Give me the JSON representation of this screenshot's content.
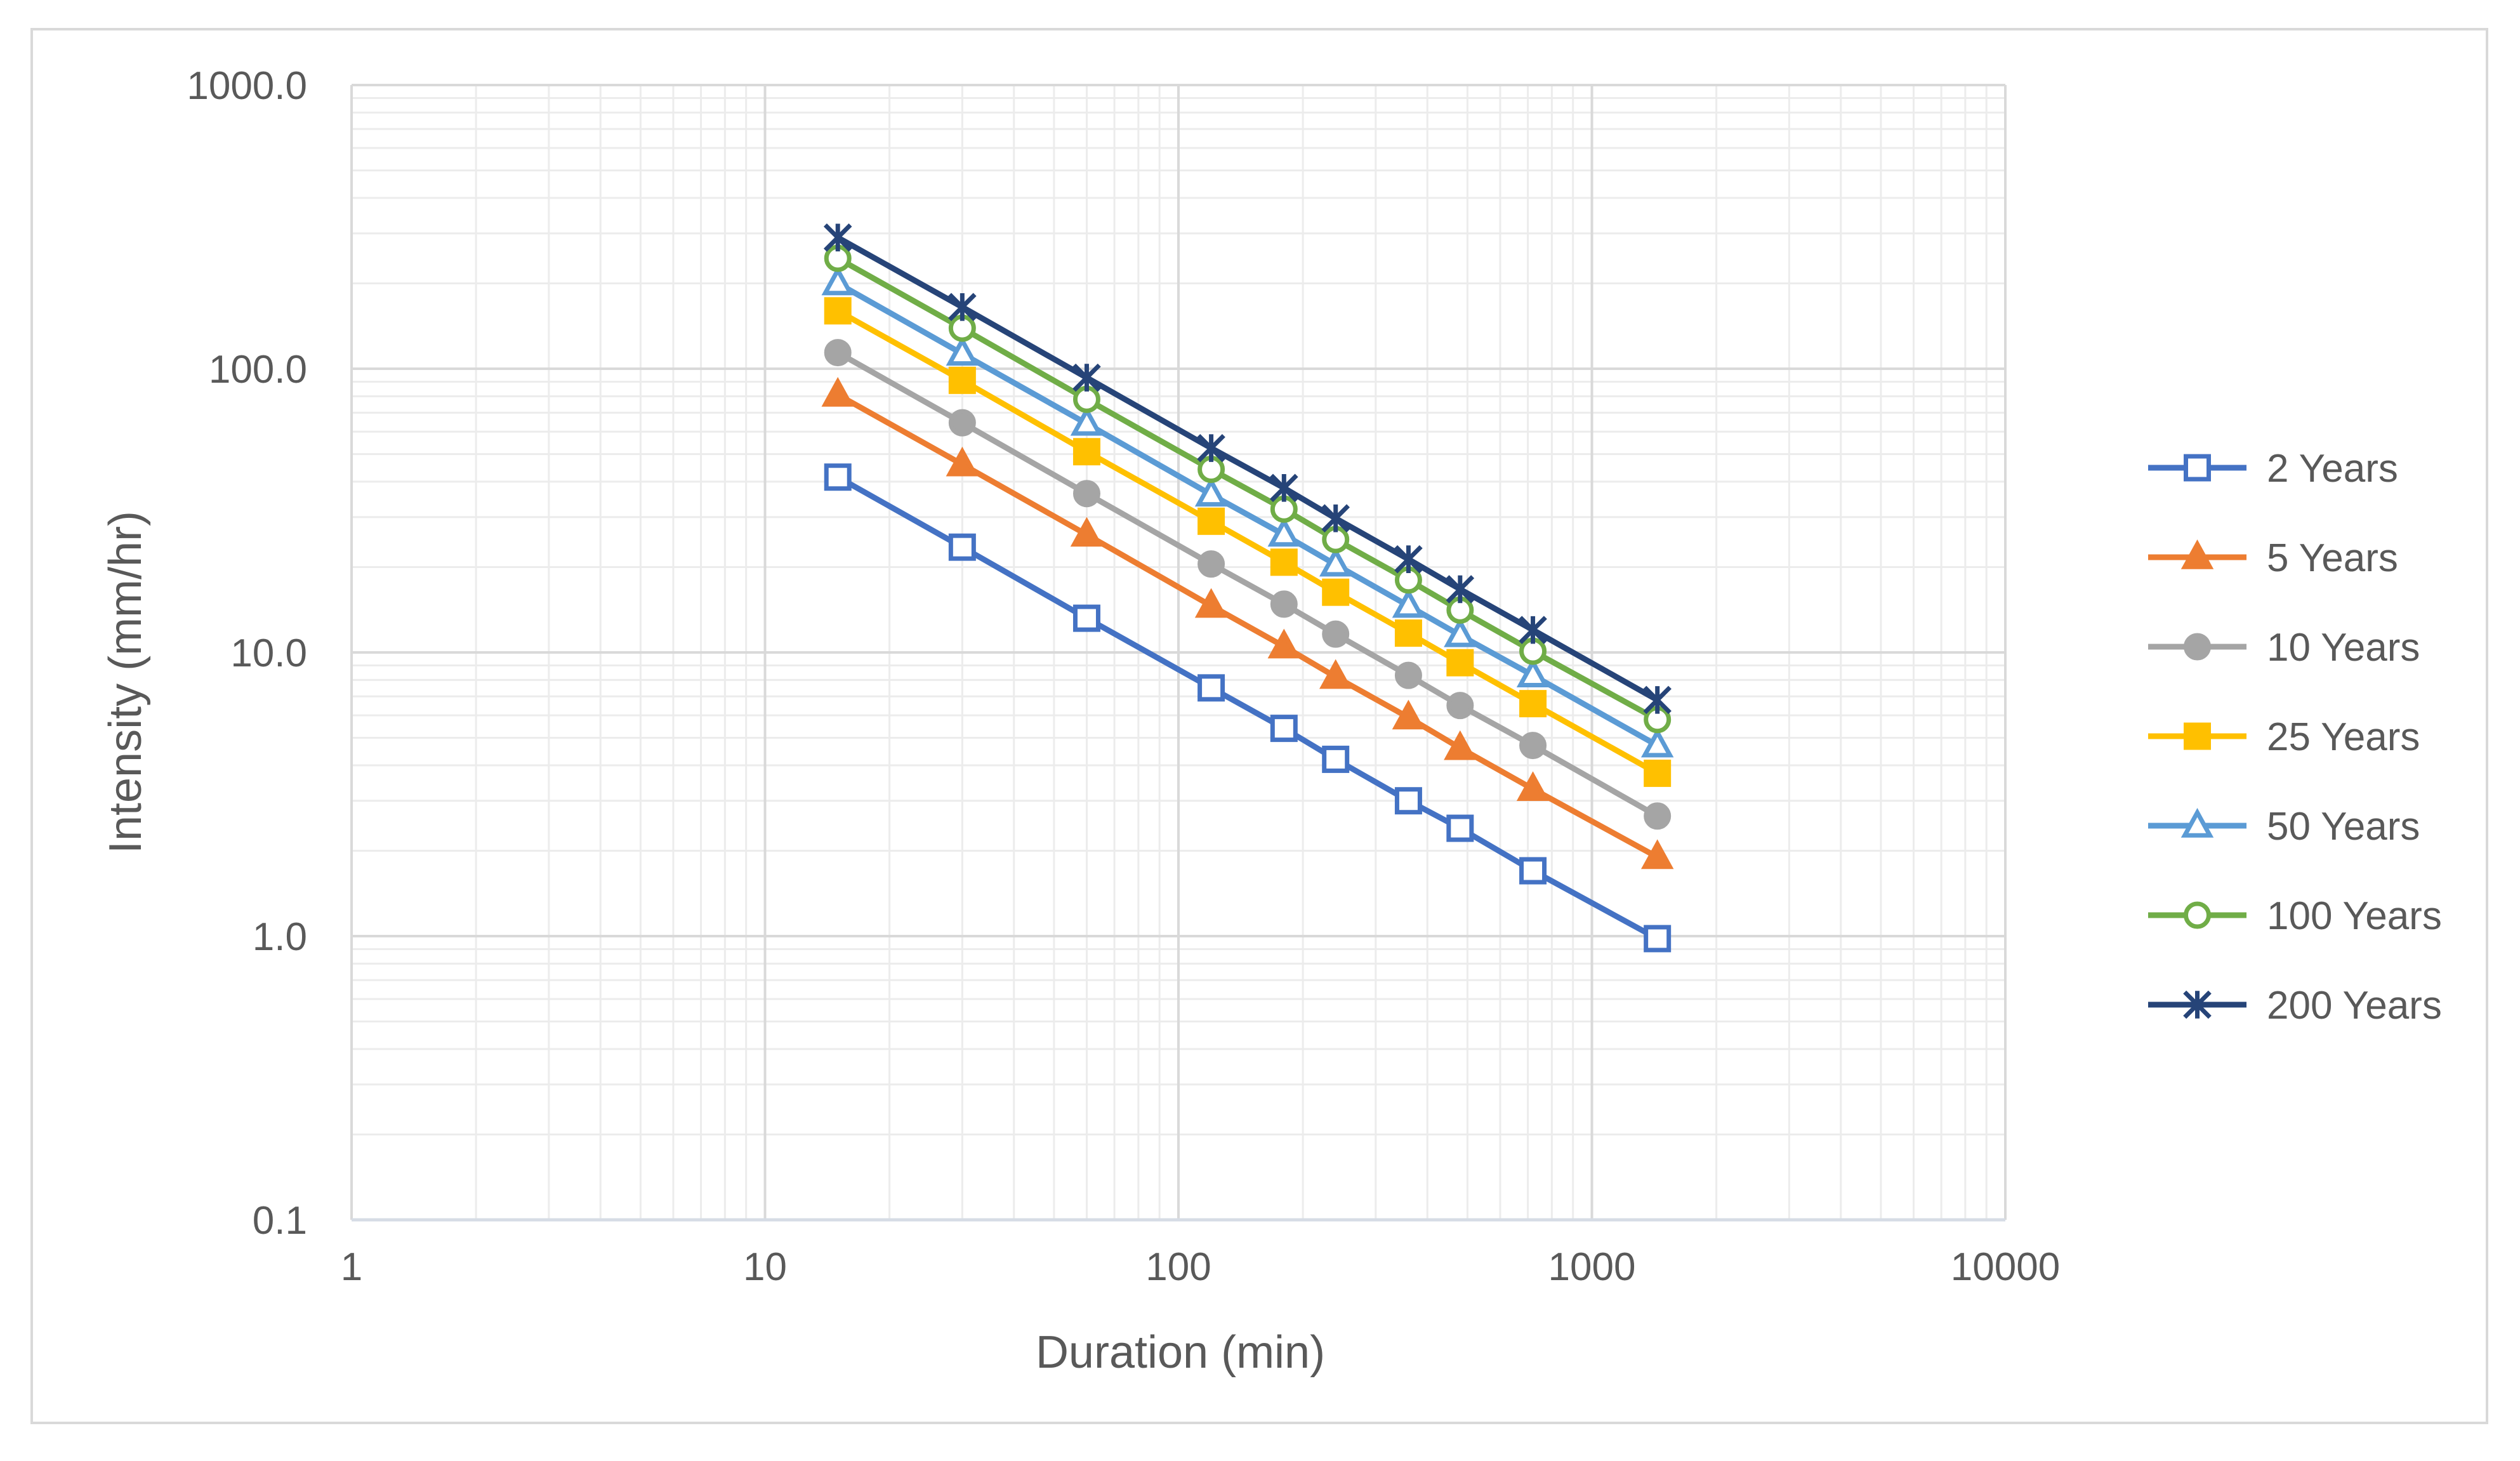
{
  "chart_data": {
    "type": "line",
    "title": "",
    "xlabel": "Duration (min)",
    "ylabel": "Intensity (mm/hr)",
    "xscale": "log",
    "yscale": "log",
    "xlim": [
      1,
      10000
    ],
    "ylim": [
      0.1,
      1000
    ],
    "x_tick_labels": [
      "1",
      "10",
      "100",
      "1000",
      "10000"
    ],
    "y_tick_labels": [
      "0.1",
      "1.0",
      "10.0",
      "100.0",
      "1000.0"
    ],
    "grid": true,
    "legend_position": "right",
    "x": [
      15,
      30,
      60,
      120,
      180,
      240,
      360,
      480,
      720,
      1440
    ],
    "series": [
      {
        "name": "2 Years",
        "color": "#4472c4",
        "marker": "square-open",
        "values": [
          41.5,
          23.5,
          13.2,
          7.5,
          5.4,
          4.2,
          3.0,
          2.4,
          1.7,
          0.98
        ]
      },
      {
        "name": "5 Years",
        "color": "#ed7d31",
        "marker": "triangle",
        "values": [
          81,
          46,
          26,
          14.6,
          10.5,
          8.2,
          5.9,
          4.6,
          3.3,
          1.9
        ]
      },
      {
        "name": "10 Years",
        "color": "#a5a5a5",
        "marker": "circle",
        "values": [
          114,
          64.5,
          36.3,
          20.5,
          14.8,
          11.6,
          8.3,
          6.5,
          4.7,
          2.65
        ]
      },
      {
        "name": "25 Years",
        "color": "#ffc000",
        "marker": "square",
        "values": [
          160,
          91,
          51,
          29,
          20.8,
          16.3,
          11.7,
          9.2,
          6.6,
          3.75
        ]
      },
      {
        "name": "50 Years",
        "color": "#5b9bd5",
        "marker": "triangle-open",
        "values": [
          200,
          113,
          64,
          36,
          26,
          20.4,
          14.6,
          11.5,
          8.3,
          4.7
        ]
      },
      {
        "name": "100 Years",
        "color": "#70ad47",
        "marker": "circle-open",
        "values": [
          245,
          139,
          78,
          44.2,
          32,
          25,
          18,
          14.1,
          10.1,
          5.8
        ]
      },
      {
        "name": "200 Years",
        "color": "#264478",
        "marker": "star",
        "values": [
          290,
          165,
          93,
          52.5,
          38,
          29.7,
          21.3,
          16.7,
          12,
          6.8
        ]
      }
    ]
  }
}
